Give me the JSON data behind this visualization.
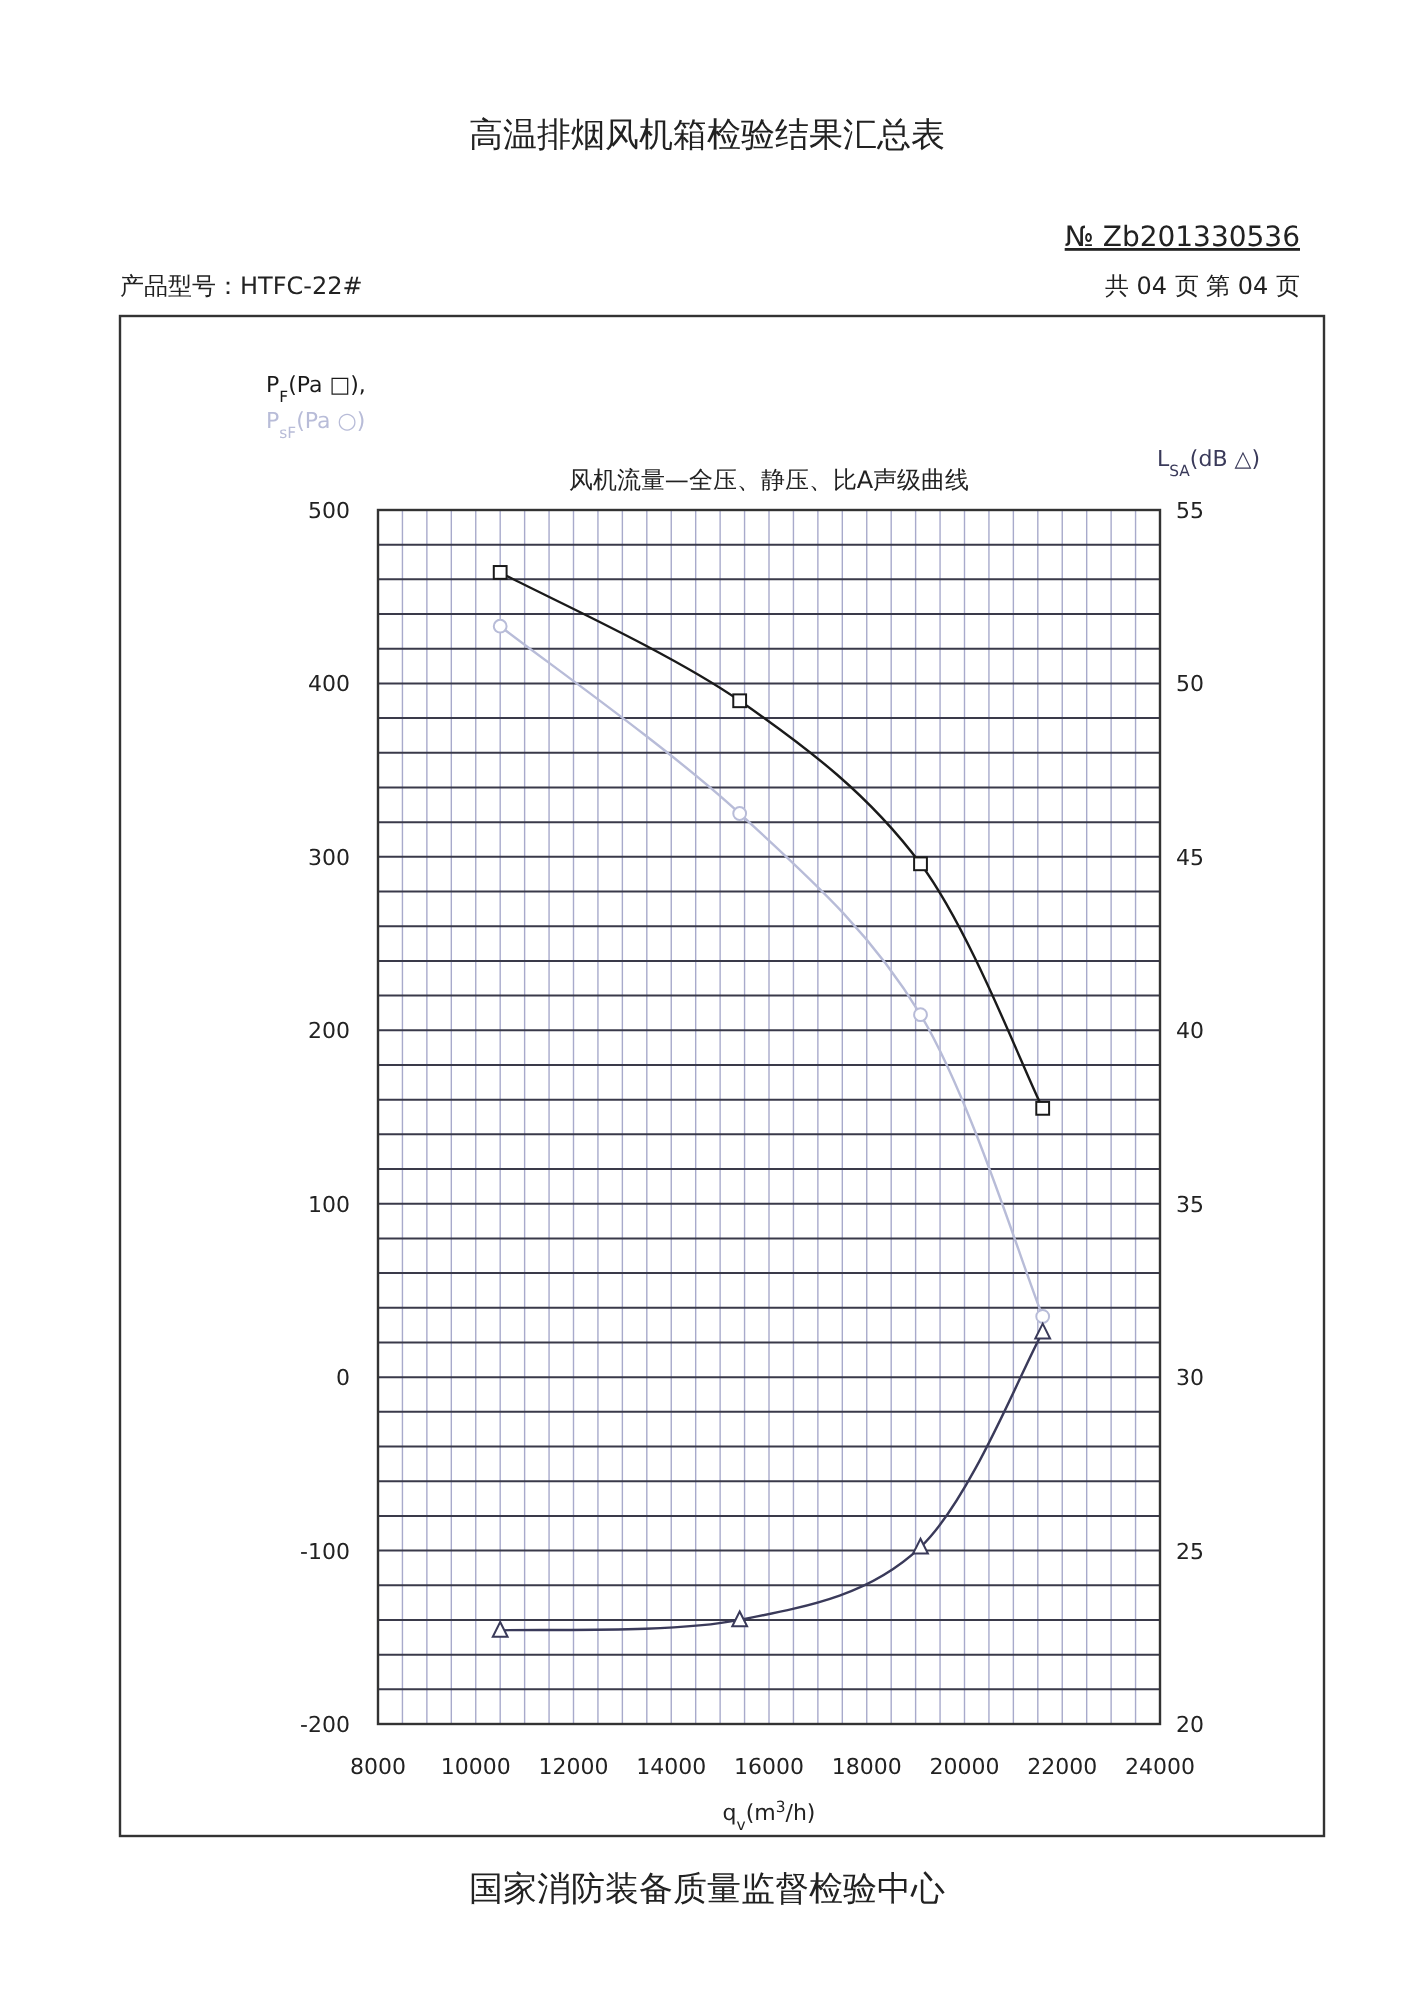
{
  "chart_data": {
    "type": "line",
    "title": "高温排烟风机箱检验结果汇总表",
    "subtitle": "风机流量—全压、静压、比A声级曲线",
    "xlabel": "q$_{v}$(m$^{3}$/h)",
    "annotations": [
      "№ Zb201330536",
      "产品型号：HTFC-22#",
      "共 04 页 第 04 页",
      "国家消防装备质量监督检验中心"
    ],
    "x": [
      10500,
      15400,
      19100,
      21600
    ],
    "series": [
      {
        "name": "P$_{F}$(Pa □),",
        "color": "#1a1a1a",
        "marker": "square",
        "values": [
          464,
          390,
          296,
          155
        ]
      },
      {
        "name": "P$_{sF}$(Pa ○)",
        "color": "#b8bcd8",
        "marker": "circle",
        "values": [
          433,
          325,
          209,
          35
        ]
      },
      {
        "name": "L$_{SA}$(dB △)",
        "color": "#3a3a5a",
        "marker": "triangle",
        "axis": "y2",
        "values": [
          22.7,
          23.0,
          25.1,
          31.3
        ]
      }
    ],
    "xlim": [
      8000,
      24000
    ],
    "ylim": [
      -200,
      500
    ],
    "y2lim": [
      20,
      55
    ],
    "xticks": [
      8000,
      {
        "value": 8500,
        "label": null
      },
      {
        "value": 9000,
        "label": null
      },
      {
        "value": 9500,
        "label": null
      },
      10000,
      {
        "value": 10500,
        "label": null
      },
      {
        "value": 11000,
        "label": null
      },
      {
        "value": 11500,
        "label": null
      },
      12000,
      {
        "value": 12500,
        "label": null
      },
      {
        "value": 13000,
        "label": null
      },
      {
        "value": 13500,
        "label": null
      },
      14000,
      {
        "value": 14500,
        "label": null
      },
      {
        "value": 15000,
        "label": null
      },
      {
        "value": 15500,
        "label": null
      },
      16000,
      {
        "value": 16500,
        "label": null
      },
      {
        "value": 17000,
        "label": null
      },
      {
        "value": 17500,
        "label": null
      },
      18000,
      {
        "value": 18500,
        "label": null
      },
      {
        "value": 19000,
        "label": null
      },
      {
        "value": 19500,
        "label": null
      },
      20000,
      {
        "value": 20500,
        "label": null
      },
      {
        "value": 21000,
        "label": null
      },
      {
        "value": 21500,
        "label": null
      },
      22000,
      {
        "value": 22500,
        "label": null
      },
      {
        "value": 23000,
        "label": null
      },
      {
        "value": 23500,
        "label": null
      },
      24000
    ],
    "yticks": [
      -200,
      {
        "value": -180,
        "label": null
      },
      {
        "value": -160,
        "label": null
      },
      {
        "value": -140,
        "label": null
      },
      {
        "value": -120,
        "label": null
      },
      -100,
      {
        "value": -80,
        "label": null
      },
      {
        "value": -60,
        "label": null
      },
      {
        "value": -40,
        "label": null
      },
      {
        "value": -20,
        "label": null
      },
      0,
      {
        "value": 20,
        "label": null
      },
      {
        "value": 40,
        "label": null
      },
      {
        "value": 60,
        "label": null
      },
      {
        "value": 80,
        "label": null
      },
      100,
      {
        "value": 120,
        "label": null
      },
      {
        "value": 140,
        "label": null
      },
      {
        "value": 160,
        "label": null
      },
      {
        "value": 180,
        "label": null
      },
      200,
      {
        "value": 220,
        "label": null
      },
      {
        "value": 240,
        "label": null
      },
      {
        "value": 260,
        "label": null
      },
      {
        "value": 280,
        "label": null
      },
      300,
      {
        "value": 320,
        "label": null
      },
      {
        "value": 340,
        "label": null
      },
      {
        "value": 360,
        "label": null
      },
      {
        "value": 380,
        "label": null
      },
      400,
      {
        "value": 420,
        "label": null
      },
      {
        "value": 440,
        "label": null
      },
      {
        "value": 460,
        "label": null
      },
      {
        "value": 480,
        "label": null
      },
      500
    ],
    "y2ticks": [
      20,
      25,
      30,
      35,
      40,
      45,
      50,
      55
    ],
    "grid": true,
    "line_style": "solid"
  }
}
